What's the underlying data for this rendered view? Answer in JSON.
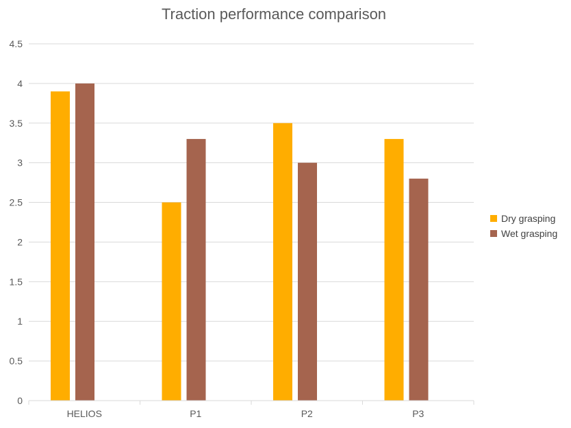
{
  "chart_data": {
    "type": "bar",
    "title": "Traction performance comparison",
    "categories": [
      "HELIOS",
      "P1",
      "P2",
      "P3"
    ],
    "series": [
      {
        "name": "Dry grasping",
        "color": "#FFAD00",
        "values": [
          3.9,
          2.5,
          3.5,
          3.3
        ]
      },
      {
        "name": "Wet grasping",
        "color": "#A5644E",
        "values": [
          4.0,
          3.3,
          3.0,
          2.8
        ]
      }
    ],
    "ylim": [
      0,
      4.5
    ],
    "yticks": [
      "0",
      "0.5",
      "1",
      "1.5",
      "2",
      "2.5",
      "3",
      "3.5",
      "4",
      "4.5"
    ],
    "grid": true,
    "legend_position": "right"
  }
}
